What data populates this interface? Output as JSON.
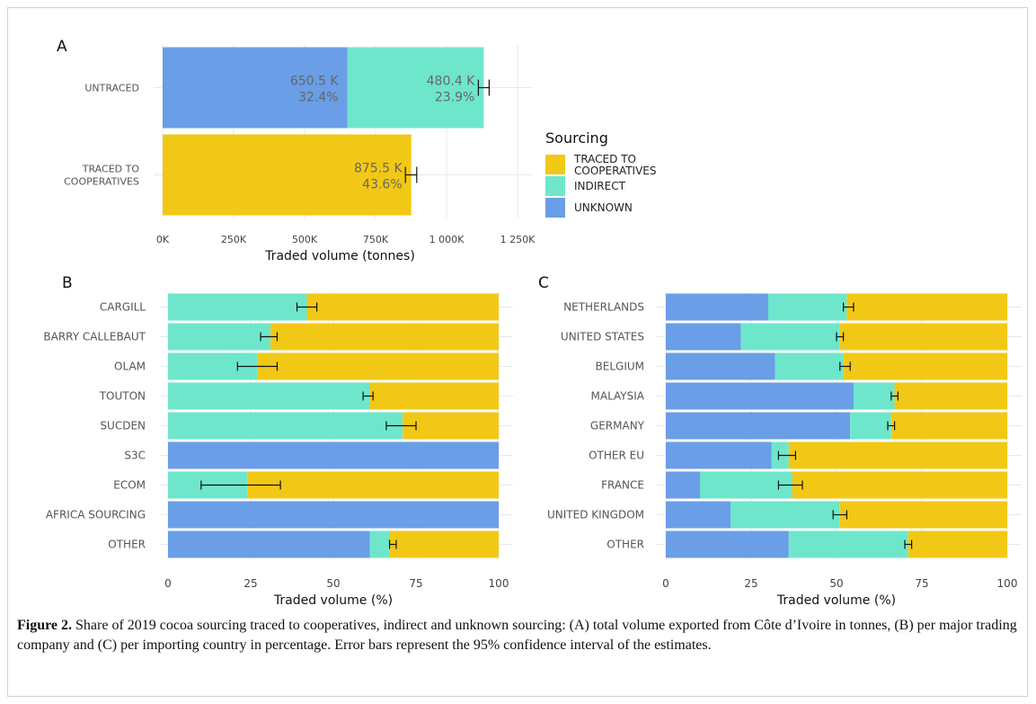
{
  "legend": {
    "title": "Sourcing",
    "items": [
      {
        "label_lines": [
          "TRACED TO",
          "COOPERATIVES"
        ],
        "color": "#f2c816"
      },
      {
        "label_lines": [
          "INDIRECT"
        ],
        "color": "#6ee6cc"
      },
      {
        "label_lines": [
          "UNKNOWN"
        ],
        "color": "#6a9ee6"
      }
    ]
  },
  "caption": {
    "label": "Figure 2.",
    "text": "Share of 2019 cocoa sourcing traced to cooperatives, indirect and unknown sourcing: (A) total volume exported from Côte d’Ivoire in tonnes, (B) per major trading company and (C) per importing country in percentage. Error bars represent the 95% confidence interval of the estimates."
  },
  "chart_data": [
    {
      "panel": "A",
      "type": "bar",
      "orientation": "horizontal",
      "stacked": true,
      "xlabel": "Traded volume (tonnes)",
      "xlim": [
        0,
        1250000
      ],
      "xticks": [
        0,
        250000,
        500000,
        750000,
        1000000,
        1250000
      ],
      "xtick_labels": [
        "0K",
        "250K",
        "500K",
        "750K",
        "1 000K",
        "1 250K"
      ],
      "grid": true,
      "categories": [
        {
          "label_lines": [
            "UNTRACED"
          ]
        },
        {
          "label_lines": [
            "TRACED TO",
            "COOPERATIVES"
          ]
        }
      ],
      "series": [
        {
          "name": "UNKNOWN",
          "color": "#6a9ee6",
          "values": [
            650500,
            0
          ],
          "labels": [
            [
              "650.5 K",
              "32.4%"
            ],
            null
          ]
        },
        {
          "name": "INDIRECT",
          "color": "#6ee6cc",
          "values": [
            480400,
            0
          ],
          "labels": [
            [
              "480.4 K",
              "23.9%"
            ],
            null
          ]
        },
        {
          "name": "TRACED TO COOPERATIVES",
          "color": "#f2c816",
          "values": [
            0,
            875500
          ],
          "labels": [
            null,
            [
              "875.5 K",
              "43.6%"
            ]
          ]
        }
      ],
      "error_bars": [
        [
          1112000,
          1150000
        ],
        [
          855000,
          895000
        ]
      ]
    },
    {
      "panel": "B",
      "type": "bar",
      "orientation": "horizontal",
      "stacked": true,
      "xlabel": "Traded volume (%)",
      "xlim": [
        0,
        100
      ],
      "xticks": [
        0,
        25,
        50,
        75,
        100
      ],
      "grid": true,
      "categories": [
        "CARGILL",
        "BARRY CALLEBAUT",
        "OLAM",
        "TOUTON",
        "SUCDEN",
        "S3C",
        "ECOM",
        "AFRICA SOURCING",
        "OTHER"
      ],
      "series": [
        {
          "name": "UNKNOWN",
          "color": "#6a9ee6",
          "values": [
            0,
            0,
            0,
            0,
            0,
            100,
            0,
            100,
            61
          ]
        },
        {
          "name": "INDIRECT",
          "color": "#6ee6cc",
          "values": [
            42,
            31,
            27,
            61,
            71,
            0,
            24,
            0,
            6
          ]
        },
        {
          "name": "TRACED TO COOPERATIVES",
          "color": "#f2c816",
          "values": [
            58,
            69,
            73,
            39,
            29,
            0,
            76,
            0,
            33
          ]
        }
      ],
      "error_bars": [
        [
          39,
          45
        ],
        [
          28,
          33
        ],
        [
          21,
          33
        ],
        [
          59,
          62
        ],
        [
          66,
          75
        ],
        null,
        [
          10,
          34
        ],
        null,
        [
          67,
          69
        ]
      ]
    },
    {
      "panel": "C",
      "type": "bar",
      "orientation": "horizontal",
      "stacked": true,
      "xlabel": "Traded volume (%)",
      "xlim": [
        0,
        100
      ],
      "xticks": [
        0,
        25,
        50,
        75,
        100
      ],
      "grid": true,
      "categories": [
        "NETHERLANDS",
        "UNITED STATES",
        "BELGIUM",
        "MALAYSIA",
        "GERMANY",
        "OTHER EU",
        "FRANCE",
        "UNITED KINGDOM",
        "OTHER"
      ],
      "series": [
        {
          "name": "UNKNOWN",
          "color": "#6a9ee6",
          "values": [
            30,
            22,
            32,
            55,
            54,
            31,
            10,
            19,
            36
          ]
        },
        {
          "name": "INDIRECT",
          "color": "#6ee6cc",
          "values": [
            23,
            29,
            20,
            12,
            12,
            5,
            27,
            32,
            35
          ]
        },
        {
          "name": "TRACED TO COOPERATIVES",
          "color": "#f2c816",
          "values": [
            47,
            49,
            48,
            33,
            34,
            64,
            63,
            49,
            29
          ]
        }
      ],
      "error_bars": [
        [
          52,
          55
        ],
        [
          50,
          52
        ],
        [
          51,
          54
        ],
        [
          66,
          68
        ],
        [
          65,
          67
        ],
        [
          33,
          38
        ],
        [
          33,
          40
        ],
        [
          49,
          53
        ],
        [
          70,
          72
        ]
      ]
    }
  ]
}
